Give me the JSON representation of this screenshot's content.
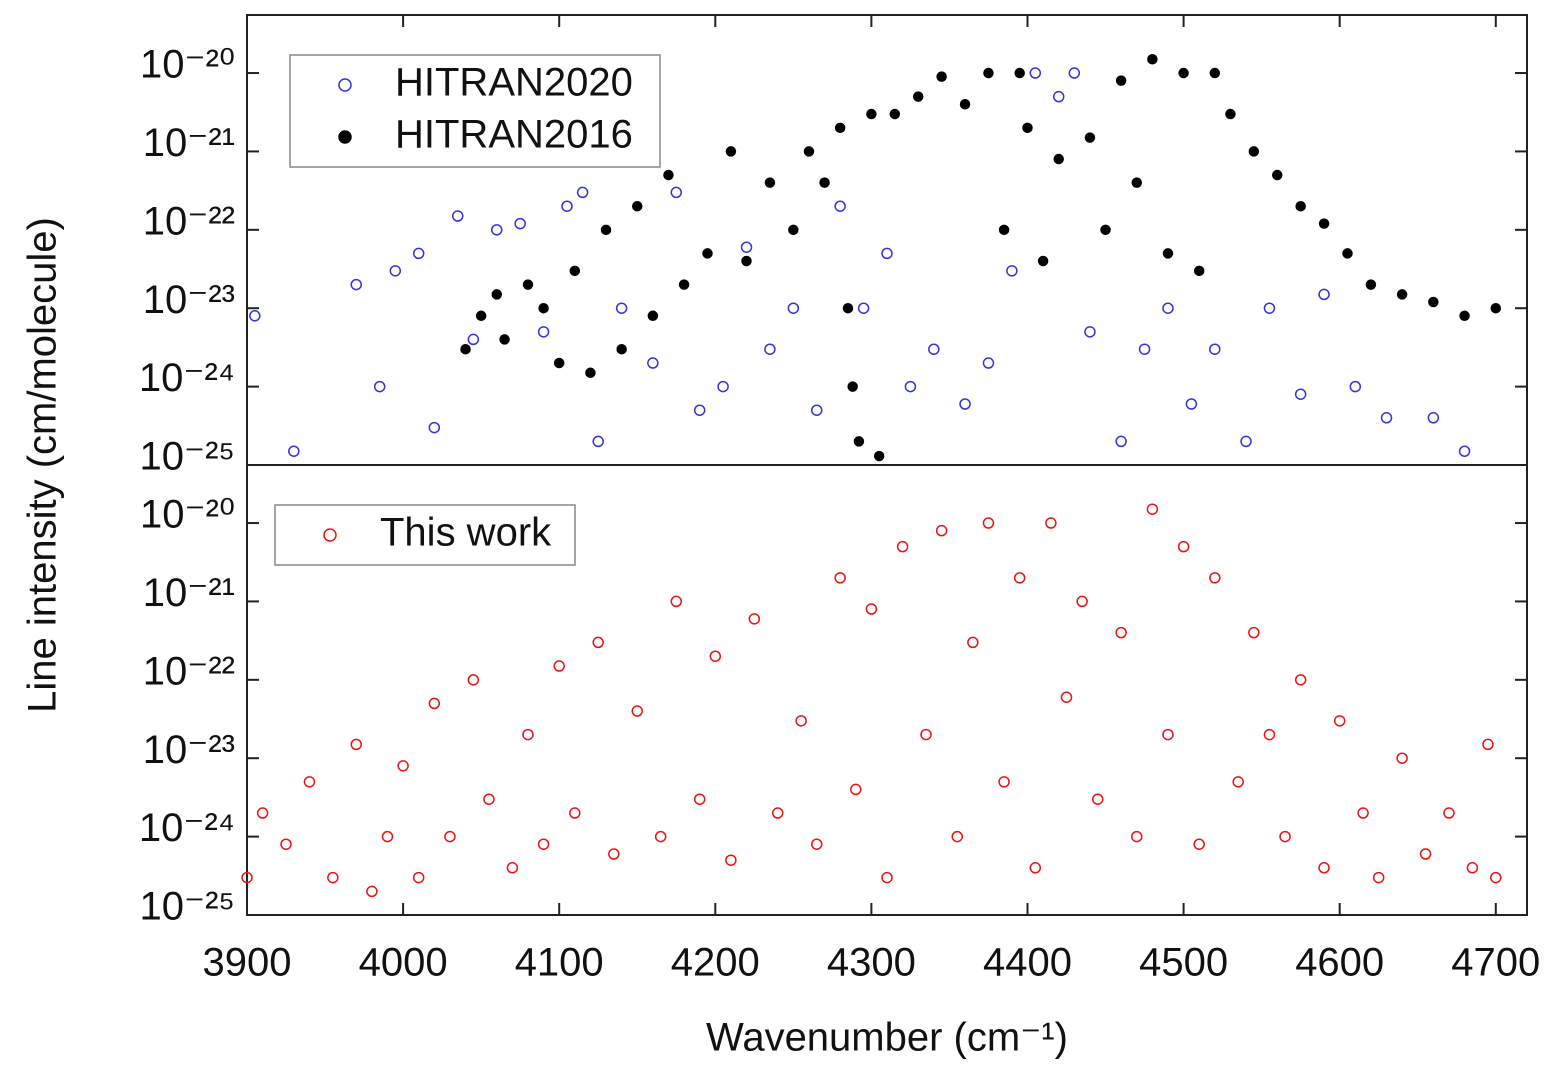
{
  "chart_data": [
    {
      "type": "scatter",
      "ylabel": "Line intensity (cm/molecule)",
      "log_y": true,
      "xlim": [
        3900,
        4720
      ],
      "ylim": [
        1e-25,
        5.5e-20
      ],
      "yticks": [
        {
          "value": 1e-25,
          "label": "10⁻²⁵"
        },
        {
          "value": 1e-24,
          "label": "10⁻²⁴"
        },
        {
          "value": 1e-23,
          "label": "10⁻²³"
        },
        {
          "value": 1e-22,
          "label": "10⁻²²"
        },
        {
          "value": 1e-21,
          "label": "10⁻²¹"
        },
        {
          "value": 1e-20,
          "label": "10⁻²⁰"
        }
      ],
      "legend": "upper left",
      "series": [
        {
          "name": "HITRAN2020",
          "color": "#3333dd",
          "marker": "open",
          "x": [
            3905,
            3930,
            3970,
            3985,
            3995,
            4010,
            4020,
            4035,
            4045,
            4060,
            4075,
            4090,
            4105,
            4115,
            4125,
            4140,
            4160,
            4175,
            4190,
            4205,
            4220,
            4235,
            4250,
            4265,
            4280,
            4295,
            4310,
            4325,
            4340,
            4360,
            4375,
            4390,
            4405,
            4420,
            4430,
            4440,
            4460,
            4475,
            4490,
            4505,
            4520,
            4540,
            4555,
            4575,
            4590,
            4610,
            4630,
            4660,
            4680
          ],
          "values": [
            8e-24,
            1.5e-25,
            2e-23,
            1e-24,
            3e-23,
            5e-23,
            3e-25,
            1.5e-22,
            4e-24,
            1e-22,
            1.2e-22,
            5e-24,
            2e-22,
            3e-22,
            2e-25,
            1e-23,
            2e-24,
            3e-22,
            5e-25,
            1e-24,
            6e-23,
            3e-24,
            1e-23,
            5e-25,
            2e-22,
            1e-23,
            5e-23,
            1e-24,
            3e-24,
            6e-25,
            2e-24,
            3e-23,
            1e-20,
            5e-21,
            1e-20,
            5e-24,
            2e-25,
            3e-24,
            1e-23,
            6e-25,
            3e-24,
            2e-25,
            1e-23,
            8e-25,
            1.5e-23,
            1e-24,
            4e-25,
            4e-25,
            1.5e-25
          ]
        },
        {
          "name": "HITRAN2016",
          "color": "#000000",
          "marker": "filled",
          "x": [
            4040,
            4050,
            4060,
            4065,
            4080,
            4090,
            4100,
            4110,
            4120,
            4130,
            4140,
            4150,
            4160,
            4170,
            4180,
            4195,
            4210,
            4220,
            4235,
            4250,
            4260,
            4270,
            4280,
            4285,
            4288,
            4292,
            4300,
            4305,
            4315,
            4330,
            4345,
            4360,
            4375,
            4385,
            4395,
            4400,
            4410,
            4420,
            4440,
            4450,
            4460,
            4470,
            4480,
            4490,
            4500,
            4510,
            4520,
            4530,
            4545,
            4560,
            4575,
            4590,
            4605,
            4620,
            4640,
            4660,
            4680,
            4700
          ],
          "values": [
            3e-24,
            8e-24,
            1.5e-23,
            4e-24,
            2e-23,
            1e-23,
            2e-24,
            3e-23,
            1.5e-24,
            1e-22,
            3e-24,
            2e-22,
            8e-24,
            5e-22,
            2e-23,
            5e-23,
            1e-21,
            4e-23,
            4e-22,
            1e-22,
            1e-21,
            4e-22,
            2e-21,
            1e-23,
            1e-24,
            2e-25,
            3e-21,
            1.3e-25,
            3e-21,
            5e-21,
            9e-21,
            4e-21,
            1e-20,
            1e-22,
            1e-20,
            2e-21,
            4e-23,
            8e-22,
            1.5e-21,
            1e-22,
            8e-21,
            4e-22,
            1.5e-20,
            5e-23,
            1e-20,
            3e-23,
            1e-20,
            3e-21,
            1e-21,
            5e-22,
            2e-22,
            1.2e-22,
            5e-23,
            2e-23,
            1.5e-23,
            1.2e-23,
            8e-24,
            1e-23
          ]
        }
      ]
    },
    {
      "type": "scatter",
      "log_y": true,
      "xlabel": "Wavenumber (cm⁻¹)",
      "xlim": [
        3900,
        4720
      ],
      "ylim": [
        1e-25,
        5.5e-20
      ],
      "xticks": [
        3900,
        4000,
        4100,
        4200,
        4300,
        4400,
        4500,
        4600,
        4700
      ],
      "yticks": [
        {
          "value": 1e-25,
          "label": "10⁻²⁵"
        },
        {
          "value": 1e-24,
          "label": "10⁻²⁴"
        },
        {
          "value": 1e-23,
          "label": "10⁻²³"
        },
        {
          "value": 1e-22,
          "label": "10⁻²²"
        },
        {
          "value": 1e-21,
          "label": "10⁻²¹"
        },
        {
          "value": 1e-20,
          "label": "10⁻²⁰"
        }
      ],
      "legend": "upper left",
      "series": [
        {
          "name": "This work",
          "color": "#ee1111",
          "marker": "open",
          "x": [
            3900,
            3910,
            3925,
            3940,
            3955,
            3970,
            3980,
            3990,
            4000,
            4010,
            4020,
            4030,
            4045,
            4055,
            4070,
            4080,
            4090,
            4100,
            4110,
            4125,
            4135,
            4150,
            4165,
            4175,
            4190,
            4200,
            4210,
            4225,
            4240,
            4255,
            4265,
            4280,
            4290,
            4300,
            4310,
            4320,
            4335,
            4345,
            4355,
            4365,
            4375,
            4385,
            4395,
            4405,
            4415,
            4425,
            4435,
            4445,
            4460,
            4470,
            4480,
            4490,
            4500,
            4510,
            4520,
            4535,
            4545,
            4555,
            4565,
            4575,
            4590,
            4600,
            4615,
            4625,
            4640,
            4655,
            4670,
            4685,
            4695,
            4700
          ],
          "values": [
            3e-25,
            2e-24,
            8e-25,
            5e-24,
            3e-25,
            1.5e-23,
            2e-25,
            1e-24,
            8e-24,
            3e-25,
            5e-23,
            1e-24,
            1e-22,
            3e-24,
            4e-25,
            2e-23,
            8e-25,
            1.5e-22,
            2e-24,
            3e-22,
            6e-25,
            4e-23,
            1e-24,
            1e-21,
            3e-24,
            2e-22,
            5e-25,
            6e-22,
            2e-24,
            3e-23,
            8e-25,
            2e-21,
            4e-24,
            8e-22,
            3e-25,
            5e-21,
            2e-23,
            8e-21,
            1e-24,
            3e-22,
            1e-20,
            5e-24,
            2e-21,
            4e-25,
            1e-20,
            6e-23,
            1e-21,
            3e-24,
            4e-22,
            1e-24,
            1.5e-20,
            2e-23,
            5e-21,
            8e-25,
            2e-21,
            5e-24,
            4e-22,
            2e-23,
            1e-24,
            1e-22,
            4e-25,
            3e-23,
            2e-24,
            3e-25,
            1e-23,
            6e-25,
            2e-24,
            4e-25,
            1.5e-23,
            3e-25
          ]
        }
      ]
    }
  ]
}
